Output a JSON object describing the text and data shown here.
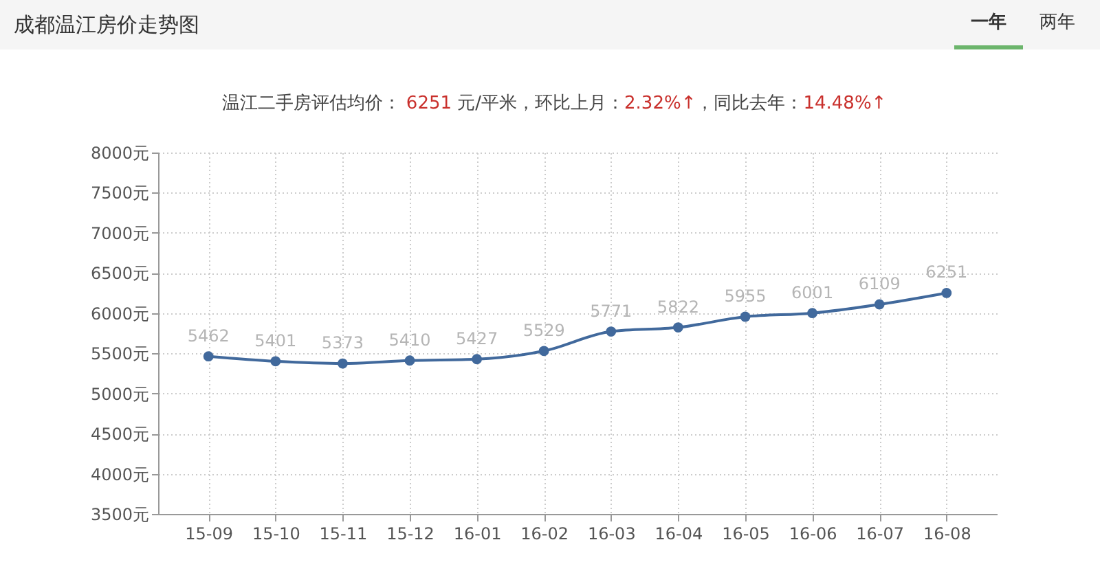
{
  "chart_data": {
    "type": "line",
    "title": "成都温江房价走势图",
    "subtitle": "温江二手房评估均价： 6251 元/平米，环比上月：2.32%↑，同比去年：14.48%↑",
    "annotations": [
      "一年",
      "两年"
    ],
    "categories": [
      "15-09",
      "15-10",
      "15-11",
      "15-12",
      "16-01",
      "16-02",
      "16-03",
      "16-04",
      "16-05",
      "16-06",
      "16-07",
      "16-08"
    ],
    "series": [
      {
        "color": "#41699c",
        "values": [
          5462,
          5401,
          5373,
          5410,
          5427,
          5529,
          5771,
          5822,
          5955,
          6001,
          6109,
          6251
        ]
      }
    ],
    "ylim": [
      3500,
      8000
    ],
    "yticks": [
      {
        "value": 3500,
        "label": "3500元"
      },
      {
        "value": 4000,
        "label": "4000元"
      },
      {
        "value": 4500,
        "label": "4500元"
      },
      {
        "value": 5000,
        "label": "5000元"
      },
      {
        "value": 5500,
        "label": "5500元"
      },
      {
        "value": 6000,
        "label": "6000元"
      },
      {
        "value": 6500,
        "label": "6500元"
      },
      {
        "value": 7000,
        "label": "7000元"
      },
      {
        "value": 7500,
        "label": "7500元"
      },
      {
        "value": 8000,
        "label": "8000元"
      }
    ],
    "grid": true,
    "data_labels": true,
    "marker": "circle",
    "line_style": "solid"
  }
}
